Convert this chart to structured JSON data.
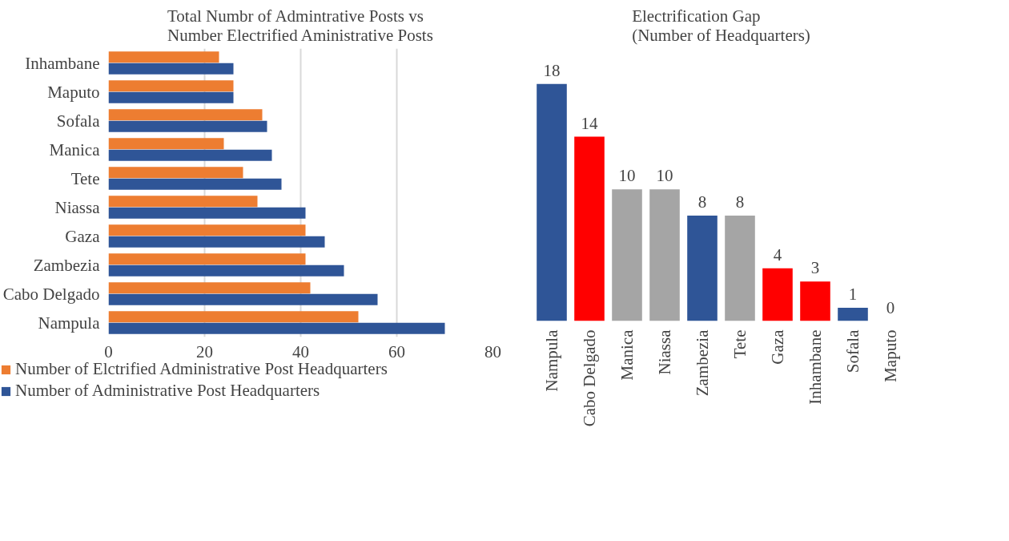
{
  "chart_data": [
    {
      "type": "bar",
      "orientation": "horizontal",
      "title": "Total Numbr of Admintrative Posts vs\nNumber Electrified Aministrative Posts",
      "categories": [
        "Inhambane",
        "Maputo",
        "Sofala",
        "Manica",
        "Tete",
        "Niassa",
        "Gaza",
        "Zambezia",
        "Cabo Delgado",
        "Nampula"
      ],
      "series": [
        {
          "name": "Number of Elctrified Administrative Post Headquarters",
          "color": "#ed7d31",
          "values": [
            23,
            26,
            32,
            24,
            28,
            31,
            41,
            41,
            42,
            52
          ]
        },
        {
          "name": "Number of Administrative Post Headquarters",
          "color": "#2f5597",
          "values": [
            26,
            26,
            33,
            34,
            36,
            41,
            45,
            49,
            56,
            70
          ]
        }
      ],
      "xlim": [
        0,
        80
      ],
      "xticks": [
        0,
        20,
        40,
        60,
        80
      ],
      "grid": "x",
      "legend": "bottom"
    },
    {
      "type": "bar",
      "title": "Electrification Gap\n(Number of Headquarters)",
      "categories": [
        "Nampula",
        "Cabo Delgado",
        "Manica",
        "Niassa",
        "Zambezia",
        "Tete",
        "Gaza",
        "Inhambane",
        "Sofala",
        "Maputo"
      ],
      "values": [
        18,
        14,
        10,
        10,
        8,
        8,
        4,
        3,
        1,
        0
      ],
      "colors": [
        "#2f5597",
        "#ff0000",
        "#a5a5a5",
        "#a5a5a5",
        "#2f5597",
        "#a5a5a5",
        "#ff0000",
        "#ff0000",
        "#2f5597",
        "#a5a5a5"
      ],
      "data_labels": true,
      "grid": false
    }
  ]
}
